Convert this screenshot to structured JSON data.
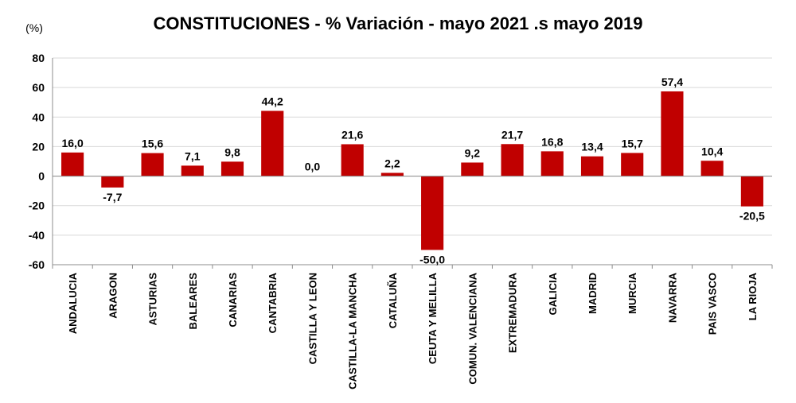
{
  "chart_data": {
    "type": "bar",
    "title": "CONSTITUCIONES - % Variación - mayo 2021 .s mayo 2019",
    "unit_label": "(%)",
    "xlabel": "",
    "ylabel": "",
    "categories": [
      "ANDALUCIA",
      "ARAGON",
      "ASTURIAS",
      "BALEARES",
      "CANARIAS",
      "CANTABRIA",
      "CASTILLA Y LEON",
      "CASTILLA-LA MANCHA",
      "CATALUÑA",
      "CEUTA Y MELILLA",
      "COMUN. VALENCIANA",
      "EXTREMADURA",
      "GALICIA",
      "MADRID",
      "MURCIA",
      "NAVARRA",
      "PAIS VASCO",
      "LA RIOJA"
    ],
    "values": [
      16.0,
      -7.7,
      15.6,
      7.1,
      9.8,
      44.2,
      0.0,
      21.6,
      2.2,
      -50.0,
      9.2,
      21.7,
      16.8,
      13.4,
      15.7,
      57.4,
      10.4,
      -20.5
    ],
    "value_labels": [
      "16,0",
      "-7,7",
      "15,6",
      "7,1",
      "9,8",
      "44,2",
      "0,0",
      "21,6",
      "2,2",
      "-50,0",
      "9,2",
      "21,7",
      "16,8",
      "13,4",
      "15,7",
      "57,4",
      "10,4",
      "-20,5"
    ],
    "ylim": [
      -60,
      80
    ],
    "yticks": [
      -60,
      -40,
      -20,
      0,
      20,
      40,
      60,
      80
    ],
    "ytick_labels": [
      "-60",
      "-40",
      "-20",
      "0",
      "20",
      "40",
      "60",
      "80"
    ],
    "grid": true,
    "legend": "none",
    "bar_color": "#C00000",
    "grid_color": "#D9D9D9",
    "axis_color": "#8C8C8C"
  }
}
